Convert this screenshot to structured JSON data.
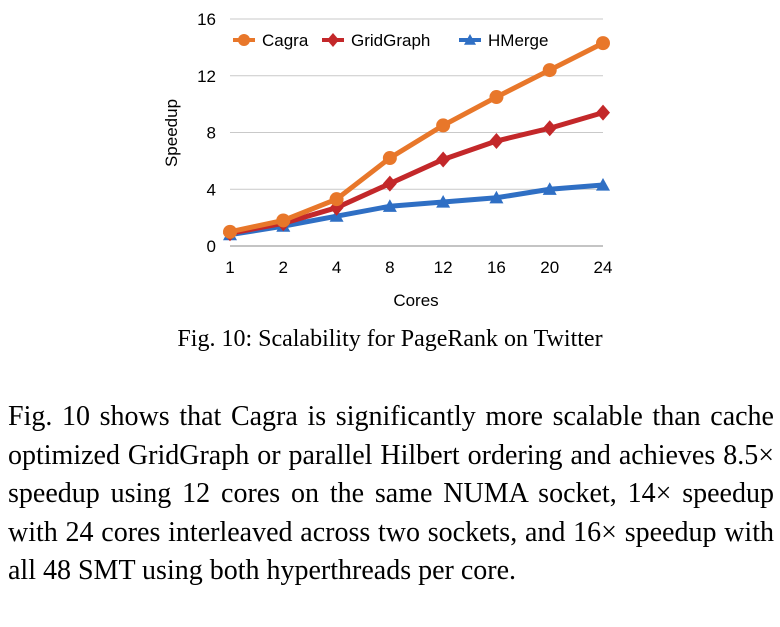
{
  "chart_data": {
    "type": "line",
    "categories": [
      "1",
      "2",
      "4",
      "8",
      "12",
      "16",
      "20",
      "24"
    ],
    "series": [
      {
        "name": "Cagra",
        "color": "#e8772a",
        "marker": "circle",
        "values": [
          1.0,
          1.8,
          3.3,
          6.2,
          8.5,
          10.5,
          12.4,
          14.3
        ]
      },
      {
        "name": "GridGraph",
        "color": "#c3282a",
        "marker": "diamond",
        "values": [
          0.9,
          1.6,
          2.7,
          4.4,
          6.1,
          7.4,
          8.3,
          9.4
        ]
      },
      {
        "name": "HMerge",
        "color": "#2f6fc4",
        "marker": "triangle",
        "values": [
          0.8,
          1.4,
          2.1,
          2.8,
          3.1,
          3.4,
          4.0,
          4.3
        ]
      }
    ],
    "xlabel": "Cores",
    "ylabel": "Speedup",
    "ylim": [
      0,
      16
    ],
    "yticks": [
      "0",
      "4",
      "8",
      "12",
      "16"
    ],
    "grid": true,
    "legend": "top"
  },
  "caption": "Fig. 10: Scalability for PageRank on Twitter",
  "body_text": "Fig. 10 shows that Cagra is significantly more scalable than cache optimized GridGraph or parallel Hilbert ordering and achieves 8.5× speedup using 12 cores on the same NUMA socket, 14× speedup with 24 cores interleaved across two sockets, and 16× speedup with all 48 SMT using both hyperthreads per core."
}
